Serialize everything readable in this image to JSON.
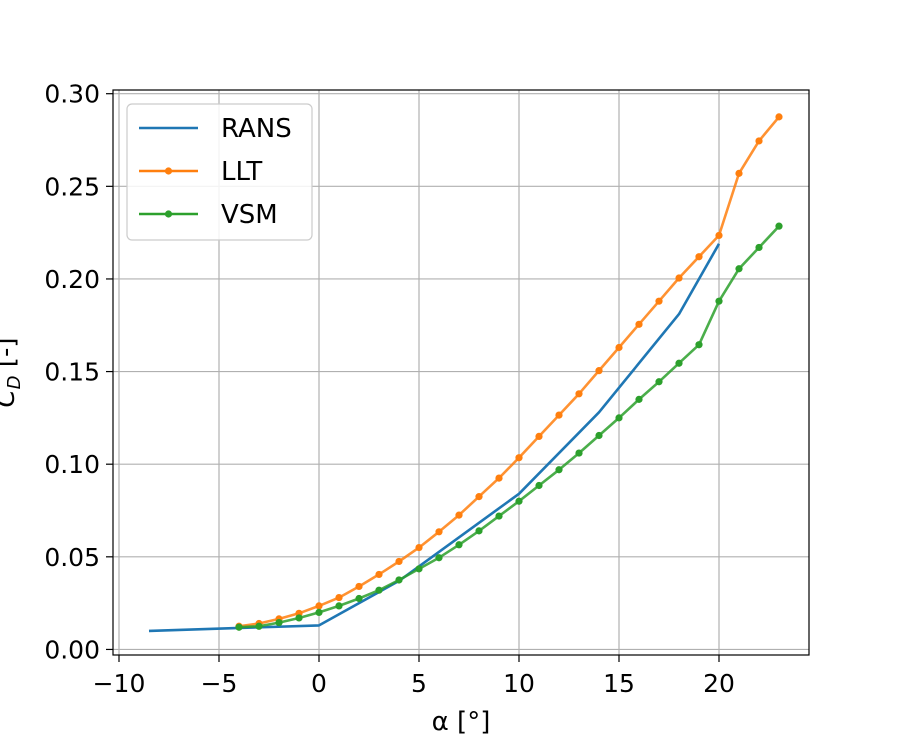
{
  "chart_data": {
    "type": "line",
    "xlabel": "α [°]",
    "ylabel": "C_D [-]",
    "ylabel_main": "C",
    "ylabel_sub": "D",
    "ylabel_rest": " [-]",
    "xlim": [
      -10.3,
      24.5
    ],
    "ylim": [
      -0.003,
      0.302
    ],
    "x_ticks": [
      -10,
      -5,
      0,
      5,
      10,
      15,
      20
    ],
    "x_tick_labels": [
      "−10",
      "−5",
      "0",
      "5",
      "10",
      "15",
      "20"
    ],
    "y_ticks": [
      0.0,
      0.05,
      0.1,
      0.15,
      0.2,
      0.25,
      0.3
    ],
    "y_tick_labels": [
      "0.00",
      "0.05",
      "0.10",
      "0.15",
      "0.20",
      "0.25",
      "0.30"
    ],
    "grid": true,
    "legend_position": "top-left",
    "series": [
      {
        "name": "RANS",
        "color": "#1f77b4",
        "markers": false,
        "x": [
          -8.5,
          0,
          4,
          10,
          14,
          18,
          20
        ],
        "y": [
          0.01,
          0.013,
          0.037,
          0.084,
          0.128,
          0.181,
          0.219
        ]
      },
      {
        "name": "LLT",
        "color": "#ff7f0e",
        "markers": true,
        "x": [
          -4,
          -3,
          -2,
          -1,
          0,
          1,
          2,
          3,
          4,
          5,
          6,
          7,
          8,
          9,
          10,
          11,
          12,
          13,
          14,
          15,
          16,
          17,
          18,
          19,
          20,
          21,
          22,
          23
        ],
        "y": [
          0.0125,
          0.014,
          0.0165,
          0.0195,
          0.0235,
          0.028,
          0.034,
          0.0405,
          0.0475,
          0.055,
          0.0635,
          0.0725,
          0.0825,
          0.0925,
          0.1035,
          0.115,
          0.1265,
          0.138,
          0.1505,
          0.163,
          0.1755,
          0.188,
          0.2005,
          0.212,
          0.2235,
          0.257,
          0.2745,
          0.2875
        ]
      },
      {
        "name": "VSM",
        "color": "#2ca02c",
        "markers": true,
        "x": [
          -4,
          -3,
          -2,
          -1,
          0,
          1,
          2,
          3,
          4,
          5,
          6,
          7,
          8,
          9,
          10,
          11,
          12,
          13,
          14,
          15,
          16,
          17,
          18,
          19,
          20,
          21,
          22,
          23
        ],
        "y": [
          0.012,
          0.0125,
          0.0145,
          0.017,
          0.02,
          0.0235,
          0.0275,
          0.032,
          0.0375,
          0.0435,
          0.0495,
          0.0565,
          0.064,
          0.072,
          0.08,
          0.0885,
          0.097,
          0.106,
          0.1155,
          0.125,
          0.135,
          0.1445,
          0.1545,
          0.1645,
          0.188,
          0.2055,
          0.217,
          0.2285
        ]
      }
    ]
  }
}
